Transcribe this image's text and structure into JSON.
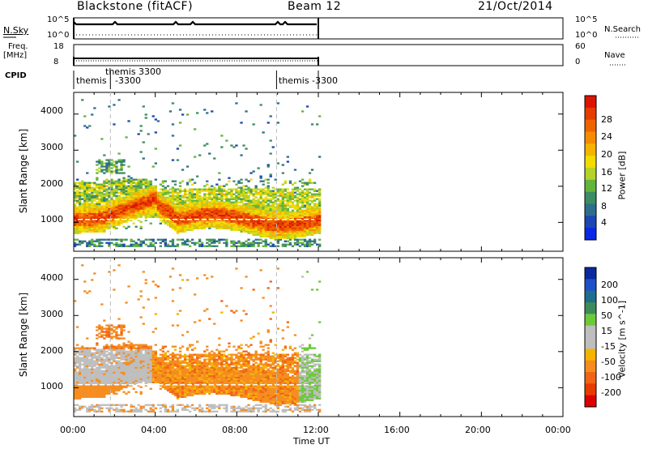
{
  "header": {
    "station": "Blackstone (fitACF)",
    "beam": "Beam 12",
    "date": "21/Oct/2014"
  },
  "top_panels": {
    "nsky": {
      "label": "N.Sky",
      "tick_high": "10^5",
      "tick_low": "10^0"
    },
    "nsearch": {
      "label": "N.Search",
      "tick_high": "10^5",
      "tick_low": "10^0"
    },
    "freq": {
      "label": "Freq.",
      "unit": "[MHz]",
      "tick_high": "18",
      "tick_low": "8"
    },
    "nave": {
      "label": "Nave",
      "tick_high": "60",
      "tick_low": "0"
    },
    "cpid": {
      "label": "CPID",
      "entries": [
        {
          "line1": "themis",
          "line2": ""
        },
        {
          "line1": "themis 3300",
          "line2": "-3300"
        },
        {
          "line1": "themis -3300",
          "line2": ""
        }
      ]
    }
  },
  "axes": {
    "xlabel": "Time UT",
    "xticks": [
      "00:00",
      "04:00",
      "08:00",
      "12:00",
      "16:00",
      "20:00",
      "00:00"
    ],
    "ylabel": "Slant Range [km]",
    "yticks": [
      "1000",
      "2000",
      "3000",
      "4000"
    ]
  },
  "power_colorbar": {
    "label": "Power [dB]",
    "ticks": [
      "4",
      "8",
      "12",
      "16",
      "20",
      "24",
      "28"
    ],
    "colors": [
      "#0a28e6",
      "#1e46b4",
      "#2e6e8c",
      "#3c8c64",
      "#64b43c",
      "#b4d228",
      "#f0dc00",
      "#f5b400",
      "#f58c00",
      "#f06400",
      "#e63c00",
      "#dc1400"
    ]
  },
  "velocity_colorbar": {
    "label": "Velocity [m s^-1]",
    "ticks": [
      "200",
      "100",
      "50",
      "15",
      "-15",
      "-50",
      "-100",
      "-200"
    ],
    "colors": [
      "#0a28a0",
      "#1e50c8",
      "#1e6e8c",
      "#3c8c5a",
      "#6ec83c",
      "#bebebe",
      "#bebebe",
      "#f5b400",
      "#f58c1e",
      "#f06414",
      "#e63c00",
      "#dc0000"
    ]
  },
  "chart_data": {
    "type": "heatmap",
    "title": "Blackstone (fitACF)  Beam 12  21/Oct/2014",
    "xlabel": "Time UT",
    "ylabel": "Slant Range [km]",
    "xlim_hours": [
      0,
      24
    ],
    "ylim_km": [
      200,
      4600
    ],
    "data_end_hours": 12.0,
    "cpid_change_hours": [
      1.8,
      9.95
    ],
    "power_panel": {
      "colorbar_label": "Power [dB]",
      "clim": [
        0,
        30
      ],
      "features": [
        {
          "name": "main band (low)",
          "t": [
            0.0,
            12.0
          ],
          "range_km_center": [
            1100,
            1000,
            1000,
            1000
          ],
          "power_db": 22
        },
        {
          "name": "main band (rising)",
          "t": [
            0.5,
            3.5
          ],
          "range_km_center": [
            1300,
            1700,
            1750
          ],
          "power_db": 26
        },
        {
          "name": "upper diffuse band",
          "t": [
            0.0,
            4.0
          ],
          "range_km_center": [
            1900,
            2300
          ],
          "power_db": 12
        },
        {
          "name": "near range echoes",
          "t": [
            0.0,
            12.0
          ],
          "range_km_center": [
            400,
            400
          ],
          "power_db": 8
        }
      ]
    },
    "velocity_panel": {
      "colorbar_label": "Velocity [m s^-1]",
      "clim": [
        -250,
        250
      ],
      "features": [
        {
          "name": "ground scatter band",
          "t": [
            0.0,
            5.0
          ],
          "range_km_center": [
            1400,
            1600
          ],
          "velocity": 0
        },
        {
          "name": "negative velocity region",
          "t": [
            3.0,
            11.5
          ],
          "range_km_center": [
            1200,
            1300
          ],
          "velocity": -60
        },
        {
          "name": "near range",
          "t": [
            0.0,
            12.0
          ],
          "range_km_center": [
            400,
            400
          ],
          "velocity": 0
        }
      ]
    }
  }
}
